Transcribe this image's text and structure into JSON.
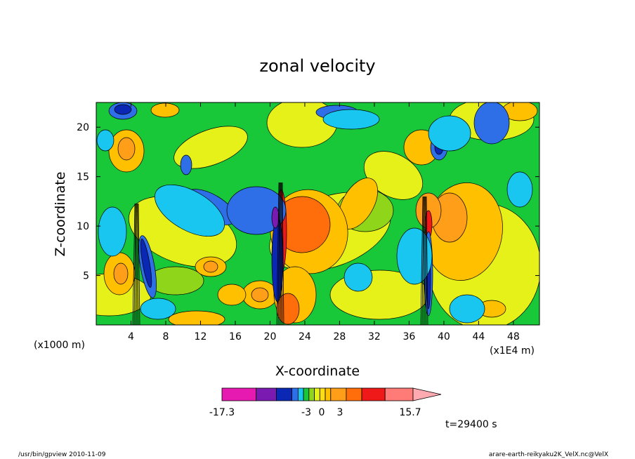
{
  "chart_data": {
    "type": "heatmap",
    "title": "zonal velocity",
    "xlabel": "X-coordinate",
    "ylabel": "Z-coordinate",
    "x_unit": "(x1E4 m)",
    "y_unit": "(x1000 m)",
    "xlim": [
      0,
      51
    ],
    "ylim": [
      0,
      22.5
    ],
    "x_ticks": [
      4,
      8,
      12,
      16,
      20,
      24,
      28,
      32,
      36,
      40,
      44,
      48
    ],
    "y_ticks": [
      5,
      10,
      15,
      20
    ],
    "x_tick_labels": [
      "4",
      "8",
      "12",
      "16",
      "20",
      "24",
      "28",
      "32",
      "36",
      "40",
      "44",
      "48"
    ],
    "y_tick_labels": [
      "5",
      "10",
      "15",
      "20"
    ],
    "colorbar": {
      "min": -17.3,
      "max": 15.7,
      "tick_labels": [
        "-17.3",
        "-3",
        "0",
        "3",
        "15.7"
      ],
      "tick_values": [
        -17.3,
        -3,
        0,
        3,
        15.7
      ],
      "colors": [
        "#e619b0",
        "#7a1ab0",
        "#0a28b4",
        "#2e6ee6",
        "#19c6f0",
        "#19c839",
        "#8fd61a",
        "#e6f019",
        "#ffdc19",
        "#ffc000",
        "#ff9e19",
        "#ff6e0a",
        "#f01919",
        "#ff7b78",
        "#ffaab0"
      ],
      "extend": "max"
    },
    "time_label": "t=29400 s"
  },
  "footer": {
    "left": "/usr/bin/gpview   2010-11-09",
    "right": "arare-earth-reikyaku2K_VelX.nc@VelX"
  }
}
